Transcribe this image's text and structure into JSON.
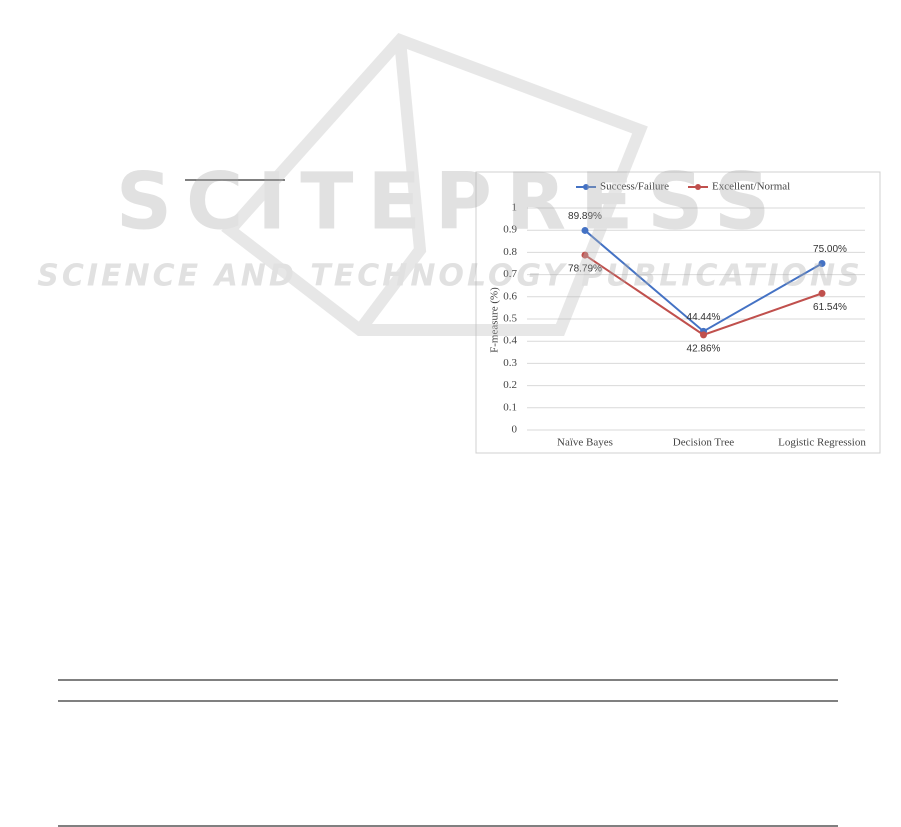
{
  "watermark": {
    "title": "SCITEPRESS",
    "subtitle": "SCIENCE AND TECHNOLOGY PUBLICATIONS"
  },
  "chart_data": {
    "type": "line",
    "y_label": "F-measure (%)",
    "categories": [
      "Naïve Bayes",
      "Decision Tree",
      "Logistic Regression"
    ],
    "series": [
      {
        "name": "Success/Failure",
        "color": "#4472c4",
        "values": [
          0.8989,
          0.4444,
          0.75
        ],
        "value_labels": [
          "89.89%",
          "44.44%",
          "75.00%"
        ]
      },
      {
        "name": "Excellent/Normal",
        "color": "#c0504d",
        "values": [
          0.7879,
          0.4286,
          0.6154
        ],
        "value_labels": [
          "78.79%",
          "42.86%",
          "61.54%"
        ]
      }
    ],
    "ylim": [
      0,
      1
    ],
    "yticks": [
      0,
      0.1,
      0.2,
      0.3,
      0.4,
      0.5,
      0.6,
      0.7,
      0.8,
      0.9,
      1
    ],
    "grid": true,
    "legend": "top"
  }
}
